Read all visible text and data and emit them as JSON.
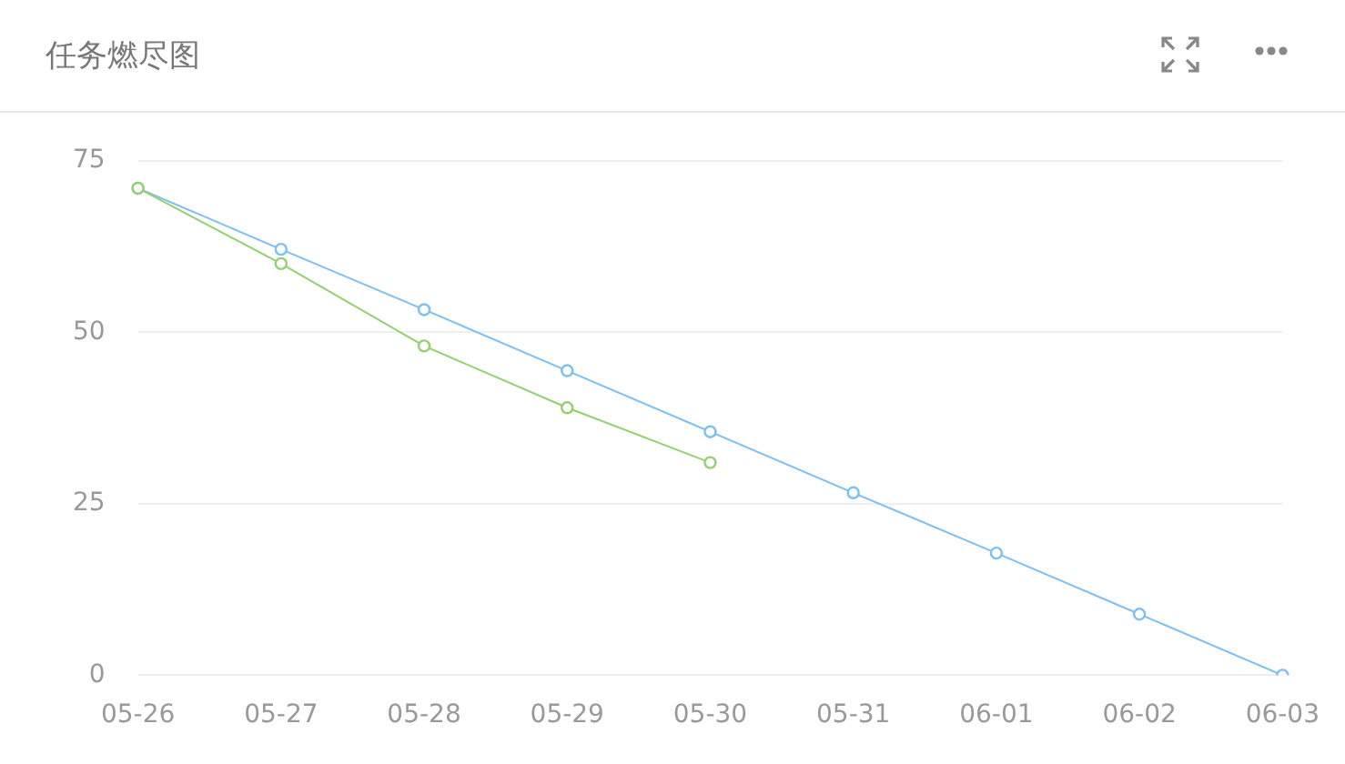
{
  "chart_data": {
    "type": "line",
    "title": "任务燃尽图",
    "categories": [
      "05-26",
      "05-27",
      "05-28",
      "05-29",
      "05-30",
      "05-31",
      "06-01",
      "06-02",
      "06-03"
    ],
    "series": [
      {
        "color": "#7cbff2",
        "values": [
          71,
          62.1,
          53.3,
          44.4,
          35.5,
          26.6,
          17.8,
          8.9,
          0
        ]
      },
      {
        "color": "#93d06f",
        "values": [
          71,
          60,
          48,
          39,
          31,
          null,
          null,
          null,
          null
        ]
      }
    ],
    "ylim": [
      0,
      75
    ],
    "yticks": [
      0,
      25,
      50,
      75
    ],
    "grid": "y",
    "legend": false,
    "marker": "circle",
    "line_style": "solid"
  }
}
